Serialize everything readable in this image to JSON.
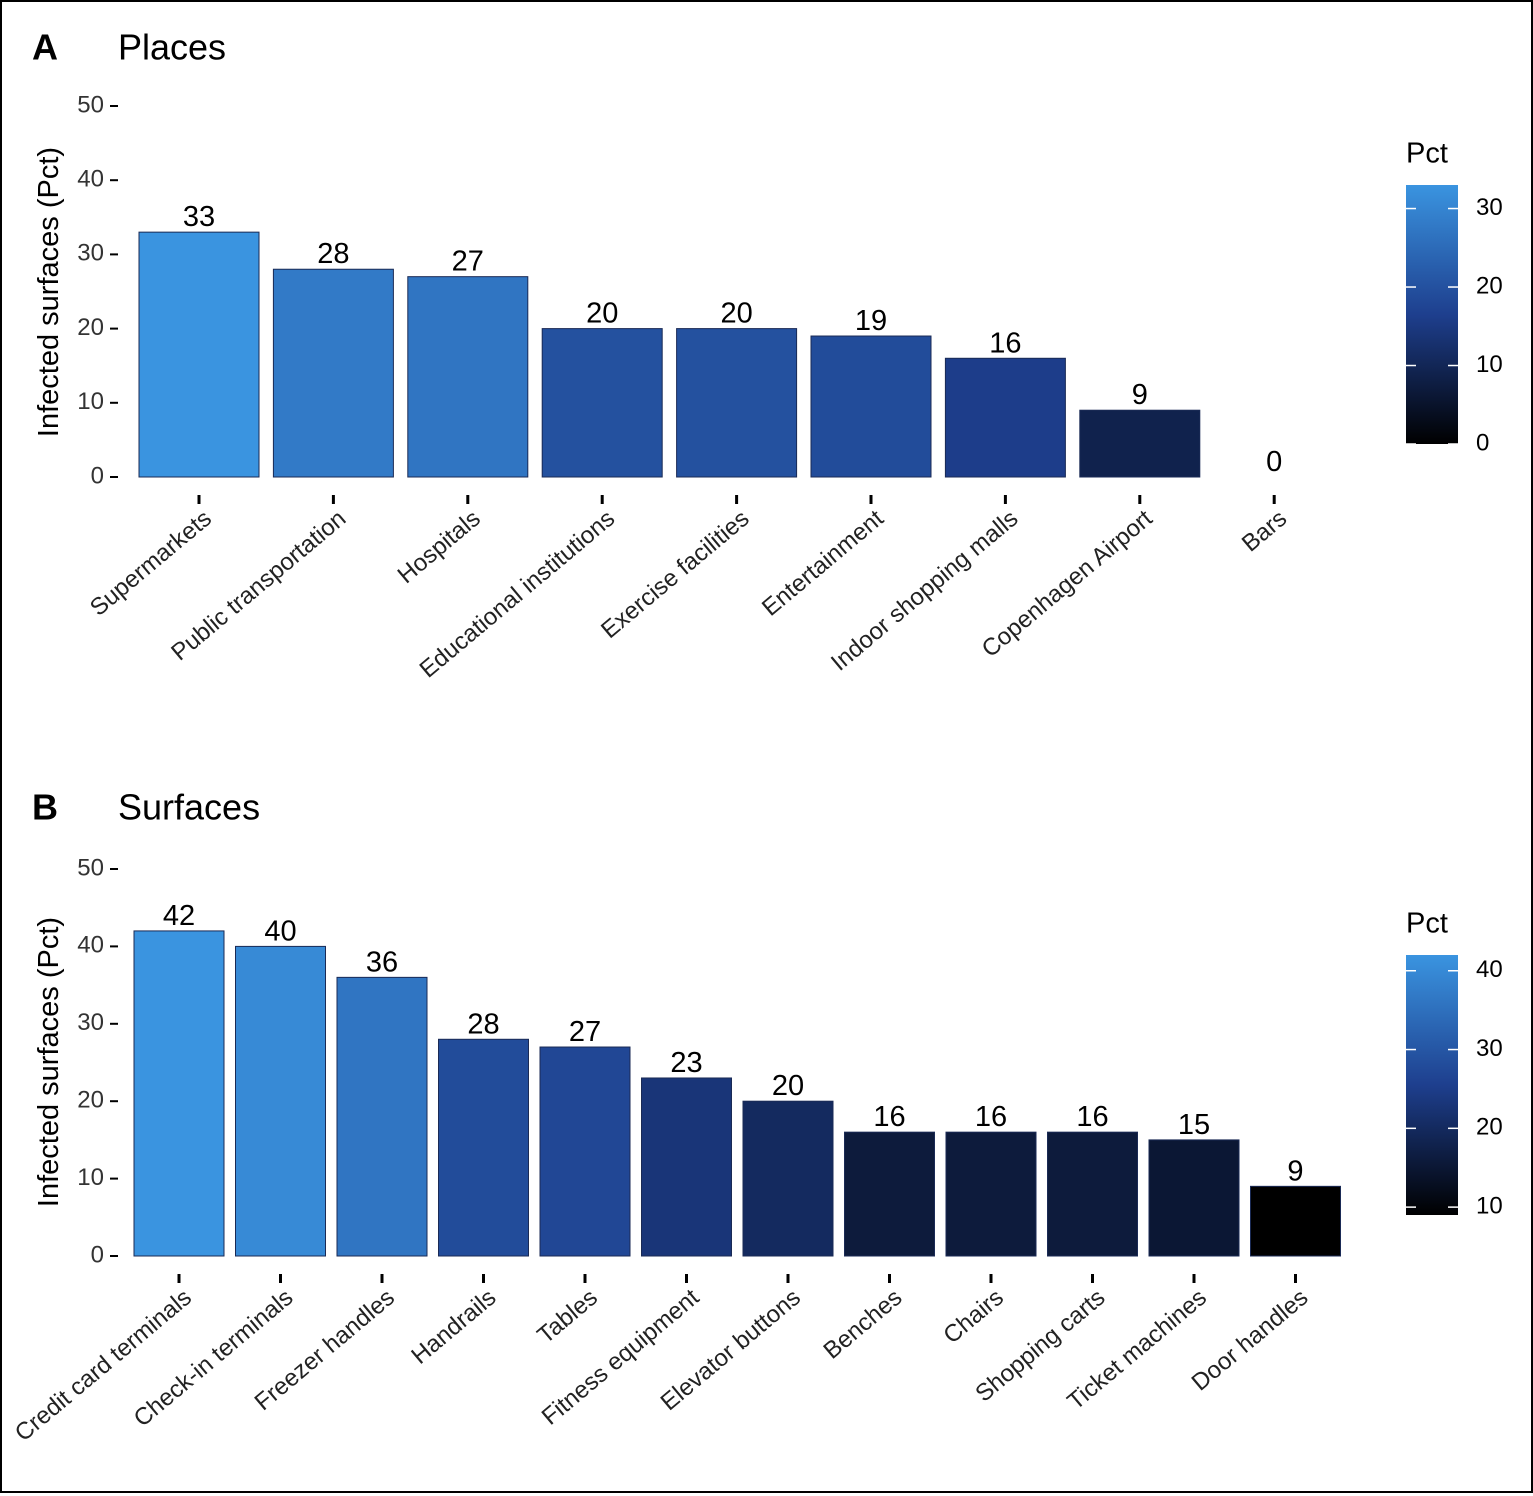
{
  "chart_data": [
    {
      "panel_letter": "A",
      "title": "Places",
      "type": "bar",
      "ylabel": "Infected surfaces (Pct)",
      "ylim": [
        0,
        50
      ],
      "yticks": [
        0,
        10,
        20,
        30,
        40,
        50
      ],
      "categories": [
        "Supermarkets",
        "Public transportation",
        "Hospitals",
        "Educational institutions",
        "Exercise facilities",
        "Entertainment",
        "Indoor shopping malls",
        "Copenhagen Airport",
        "Bars"
      ],
      "values": [
        33,
        28,
        27,
        20,
        20,
        19,
        16,
        9,
        0
      ],
      "grid": false,
      "legend": {
        "title": "Pct",
        "ticks": [
          0,
          10,
          20,
          30
        ],
        "range": [
          0,
          33
        ],
        "placement": "right",
        "colors": {
          "low": "#000000",
          "mid": "#1e3f8e",
          "high": "#3a94e0"
        }
      }
    },
    {
      "panel_letter": "B",
      "title": "Surfaces",
      "type": "bar",
      "ylabel": "Infected surfaces (Pct)",
      "ylim": [
        0,
        50
      ],
      "yticks": [
        0,
        10,
        20,
        30,
        40,
        50
      ],
      "categories": [
        "Credit card terminals",
        "Check-in terminals",
        "Freezer handles",
        "Handrails",
        "Tables",
        "Fitness equipment",
        "Elevator buttons",
        "Benches",
        "Chairs",
        "Shopping carts",
        "Ticket machines",
        "Door handles"
      ],
      "values": [
        42,
        40,
        36,
        28,
        27,
        23,
        20,
        16,
        16,
        16,
        15,
        9
      ],
      "grid": false,
      "legend": {
        "title": "Pct",
        "ticks": [
          10,
          20,
          30,
          40
        ],
        "range": [
          9,
          42
        ],
        "placement": "right",
        "colors": {
          "low": "#000000",
          "mid": "#1e3f8e",
          "high": "#3a94e0"
        }
      }
    }
  ]
}
